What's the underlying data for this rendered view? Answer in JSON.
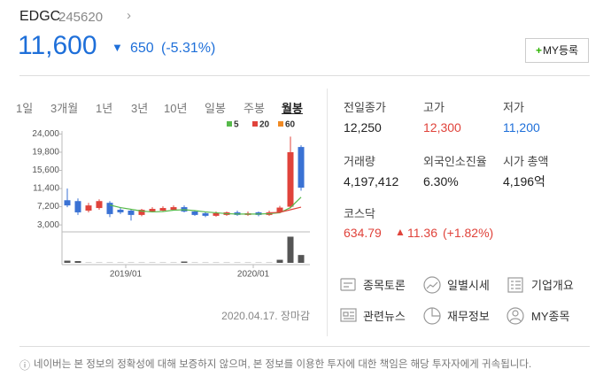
{
  "header": {
    "name": "EDGC",
    "code": "245620",
    "price": "11,600",
    "change": "650",
    "change_rate": "(-5.31%)",
    "my_button": "MY등록"
  },
  "tabs": {
    "items": [
      "1일",
      "3개월",
      "1년",
      "3년",
      "10년",
      "일봉",
      "주봉",
      "월봉"
    ],
    "active": 7
  },
  "chart_data": {
    "type": "candlestick",
    "x": [
      null,
      null,
      null,
      null,
      null,
      null,
      "2019/01",
      null,
      null,
      null,
      null,
      null,
      null,
      null,
      null,
      null,
      null,
      null,
      "2020/01",
      null,
      null,
      null,
      null
    ],
    "open": [
      8700,
      8500,
      6300,
      6900,
      8100,
      6500,
      6300,
      5300,
      6100,
      6300,
      6500,
      7100,
      6100,
      5700,
      5100,
      5300,
      5900,
      5300,
      5900,
      5300,
      6000,
      7200,
      21000
    ],
    "high": [
      11400,
      9100,
      8100,
      8900,
      8500,
      6900,
      6700,
      6700,
      7100,
      7300,
      7500,
      7500,
      6300,
      6100,
      6100,
      6100,
      6300,
      6100,
      6100,
      6300,
      7400,
      23400,
      21400
    ],
    "low": [
      7100,
      5300,
      5900,
      6500,
      4800,
      5500,
      4000,
      5000,
      5900,
      6100,
      6300,
      5900,
      5100,
      4800,
      4900,
      5100,
      5100,
      5100,
      5000,
      5100,
      5800,
      6800,
      10900
    ],
    "close": [
      7500,
      5900,
      7500,
      8500,
      5500,
      5900,
      5300,
      6500,
      6700,
      6900,
      7100,
      6100,
      5300,
      5100,
      5700,
      5900,
      5300,
      5700,
      5300,
      5900,
      7000,
      19800,
      11600
    ],
    "up_color": "#e0433b",
    "down_color": "#3a72d4",
    "moving_averages": [
      {
        "name": "5",
        "color": "#56b94a",
        "values": [
          null,
          null,
          null,
          null,
          7600,
          7000,
          6600,
          6200,
          6000,
          6100,
          6400,
          6500,
          6300,
          6000,
          5800,
          5600,
          5500,
          5500,
          5500,
          5600,
          5800,
          7000,
          9400
        ]
      },
      {
        "name": "20",
        "color": "#e0433b",
        "values": [
          null,
          null,
          null,
          null,
          null,
          null,
          null,
          null,
          null,
          null,
          null,
          null,
          null,
          null,
          null,
          null,
          null,
          null,
          null,
          5800,
          5900,
          6500,
          7100
        ]
      },
      {
        "name": "60",
        "color": "#f08a24"
      }
    ],
    "ylim": [
      1800,
      24700
    ],
    "yticks": [
      {
        "value": 24000,
        "label": "24,000"
      },
      {
        "value": 19800,
        "label": "19,800"
      },
      {
        "value": 15600,
        "label": "15,600"
      },
      {
        "value": 11400,
        "label": "11,400"
      },
      {
        "value": 7200,
        "label": "7,200"
      },
      {
        "value": 3000,
        "label": "3,000"
      }
    ],
    "volume": [
      5000000,
      4000000,
      500000,
      500000,
      500000,
      500000,
      500000,
      500000,
      500000,
      500000,
      500000,
      3000000,
      500000,
      500000,
      500000,
      500000,
      500000,
      500000,
      500000,
      500000,
      7000000,
      60000000,
      18000000
    ],
    "volume_lim": [
      0,
      65000000
    ],
    "volume_color": "#555555",
    "grid": false
  },
  "close_note": "2020.04.17. 장마감",
  "stats": [
    {
      "label": "전일종가",
      "value": "12,250",
      "color": "#222222"
    },
    {
      "label": "고가",
      "value": "12,300",
      "color": "#e0433b"
    },
    {
      "label": "저가",
      "value": "11,200",
      "color": "#1e6fd9"
    },
    {
      "label": "거래량",
      "value": "4,197,412",
      "color": "#222222"
    },
    {
      "label": "외국인소진율",
      "value": "6.30%",
      "color": "#222222"
    },
    {
      "label": "시가 총액",
      "value": "4,196억",
      "color": "#222222"
    }
  ],
  "index": {
    "label": "코스닥",
    "value": "634.79",
    "change": "11.36",
    "change_rate": "(+1.82%)"
  },
  "links": [
    "종목토론",
    "일별시세",
    "기업개요",
    "관련뉴스",
    "재무정보",
    "MY종목"
  ],
  "disclaimer": "네이버는 본 정보의 정확성에 대해 보증하지 않으며, 본 정보를 이용한 투자에 대한 책임은 해당 투자자에게 귀속됩니다."
}
